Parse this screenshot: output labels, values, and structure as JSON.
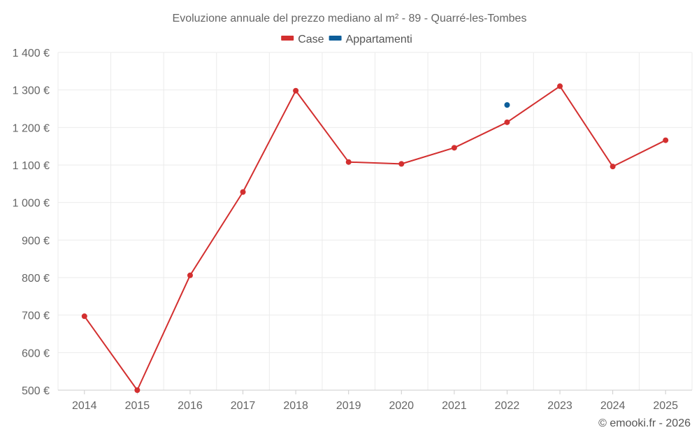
{
  "chart_data": {
    "type": "line",
    "title": "Evoluzione annuale del prezzo mediano al m² - 89 - Quarré-les-Tombes",
    "categories": [
      "2014",
      "2015",
      "2016",
      "2017",
      "2018",
      "2019",
      "2020",
      "2021",
      "2022",
      "2023",
      "2024",
      "2025"
    ],
    "series": [
      {
        "name": "Case",
        "color": "#d32f2f",
        "values": [
          697,
          500,
          806,
          1028,
          1298,
          1108,
          1103,
          1146,
          1214,
          1310,
          1096,
          1166
        ]
      },
      {
        "name": "Appartamenti",
        "color": "#0d5e9a",
        "values": [
          null,
          null,
          null,
          null,
          null,
          null,
          null,
          null,
          1260,
          null,
          null,
          null
        ]
      }
    ],
    "ylim": [
      500,
      1400
    ],
    "yticks": [
      500,
      600,
      700,
      800,
      900,
      1000,
      1100,
      1200,
      1300,
      1400
    ],
    "ytick_labels": [
      "500 €",
      "600 €",
      "700 €",
      "800 €",
      "900 €",
      "1 000 €",
      "1 100 €",
      "1 200 €",
      "1 300 €",
      "1 400 €"
    ],
    "grid": true,
    "legend_position": "top-center"
  },
  "credit": "© emooki.fr - 2026"
}
